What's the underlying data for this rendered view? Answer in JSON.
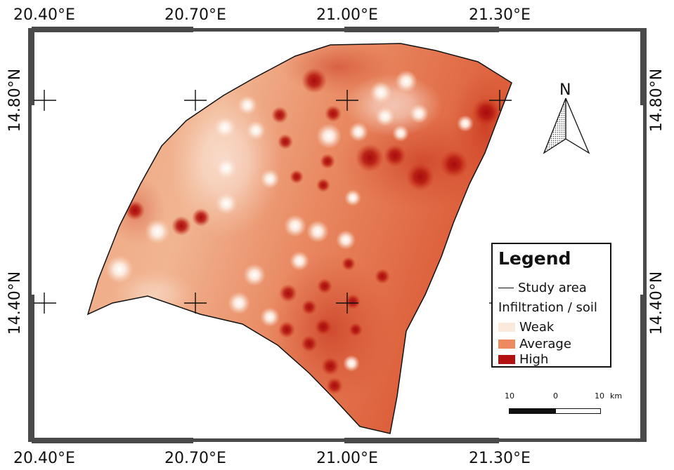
{
  "axes": {
    "top": [
      "20.40°E",
      "20.70°E",
      "21.00°E",
      "21.30°E"
    ],
    "bottom": [
      "20.40°E",
      "20.70°E",
      "21.00°E",
      "21.30°E"
    ],
    "left": [
      "14.80°N",
      "14.40°N"
    ],
    "right": [
      "14.80°N",
      "14.40°N"
    ]
  },
  "legend": {
    "title": "Legend",
    "study_area": "Study area",
    "subtitle": "Infiltration / soil",
    "classes": [
      {
        "label": "Weak",
        "color": "#fbe9dc"
      },
      {
        "label": "Average",
        "color": "#ee8a5f"
      },
      {
        "label": "High",
        "color": "#b2110f"
      }
    ]
  },
  "north_arrow": {
    "label": "N"
  },
  "scale_bar": {
    "ticks": [
      "10",
      "0",
      "10"
    ],
    "unit": "km"
  },
  "colors": {
    "frame": "#4a4a4a",
    "base_fill": "#eb9b74",
    "outline": "#111111"
  }
}
